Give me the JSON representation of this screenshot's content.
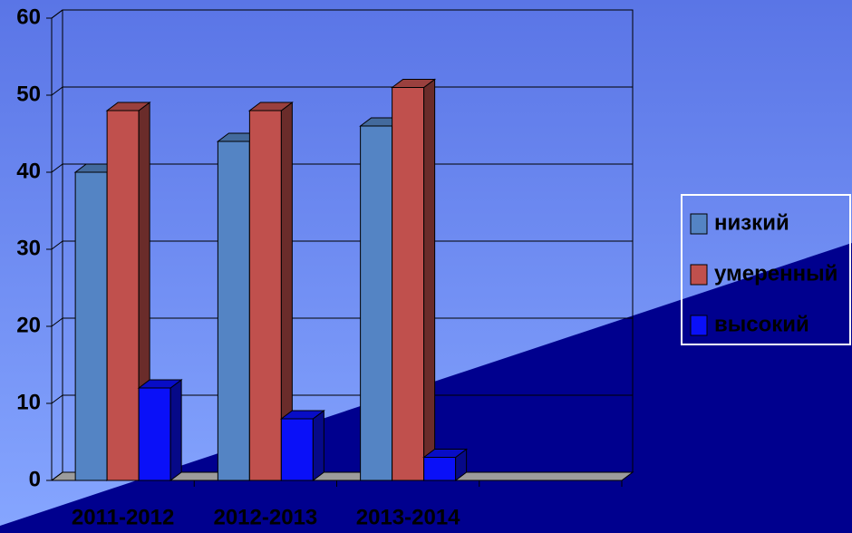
{
  "chart_data": {
    "type": "bar3d",
    "categories": [
      "2011-2012",
      "2012-2013",
      "2013-2014",
      null
    ],
    "series": [
      {
        "name": "низкий",
        "color": "#5484c4",
        "values": [
          40,
          44,
          46,
          null
        ]
      },
      {
        "name": "умеренный",
        "color": "#c0504d",
        "values": [
          48,
          48,
          51,
          null
        ]
      },
      {
        "name": "высокий",
        "color": "#0a10f8",
        "values": [
          12,
          8,
          3,
          null
        ]
      }
    ],
    "ylim": [
      0,
      60
    ],
    "yticks": [
      0,
      10,
      20,
      30,
      40,
      50,
      60
    ],
    "grid": true,
    "legend": "right"
  }
}
